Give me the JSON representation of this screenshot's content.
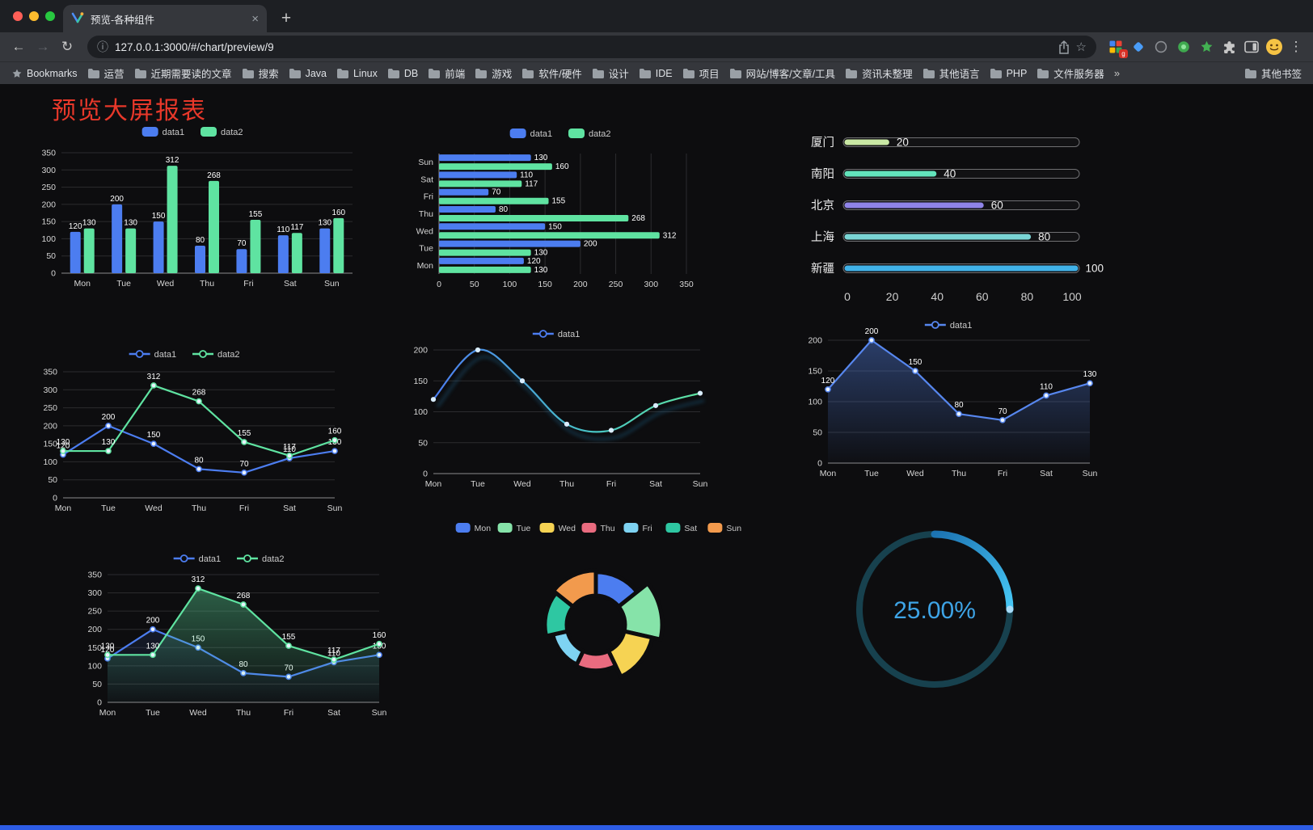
{
  "browser": {
    "tab": {
      "title": "预览-各种组件"
    },
    "new_tab_label": "+",
    "address": {
      "url": "127.0.0.1:3000/#/chart/preview/9"
    },
    "bookmarks": {
      "label": "Bookmarks",
      "items": [
        "运营",
        "近期需要读的文章",
        "搜索",
        "Java",
        "Linux",
        "DB",
        "前端",
        "游戏",
        "软件/硬件",
        "设计",
        "IDE",
        "项目",
        "网站/博客/文章/工具",
        "资讯未整理",
        "其他语言",
        "PHP",
        "文件服务器"
      ],
      "overflow": "»",
      "other": "其他书签"
    }
  },
  "page": {
    "title": "预览大屏报表",
    "title_color": "#e8382a",
    "background": "#0d0d0f"
  },
  "chart_data": [
    {
      "name": "grouped-bar-chart",
      "type": "bar",
      "categories": [
        "Mon",
        "Tue",
        "Wed",
        "Thu",
        "Fri",
        "Sat",
        "Sun"
      ],
      "series": [
        {
          "name": "data1",
          "color": "#4C7DF0",
          "values": [
            120,
            200,
            150,
            80,
            70,
            110,
            130
          ]
        },
        {
          "name": "data2",
          "color": "#5FE3A1",
          "values": [
            130,
            130,
            312,
            268,
            155,
            117,
            160
          ]
        }
      ],
      "ylim": [
        0,
        350
      ],
      "yticks": [
        0,
        50,
        100,
        150,
        200,
        250,
        300,
        350
      ],
      "grid": true,
      "legend_position": "top"
    },
    {
      "name": "horizontal-bar-chart",
      "type": "hbar",
      "categories": [
        "Mon",
        "Tue",
        "Wed",
        "Thu",
        "Fri",
        "Sat",
        "Sun"
      ],
      "series": [
        {
          "name": "data1",
          "color": "#4C7DF0",
          "values": [
            120,
            200,
            150,
            80,
            70,
            110,
            130
          ]
        },
        {
          "name": "data2",
          "color": "#5FE3A1",
          "values": [
            130,
            130,
            312,
            268,
            155,
            117,
            160
          ]
        }
      ],
      "xlim": [
        0,
        350
      ],
      "xticks": [
        0,
        50,
        100,
        150,
        200,
        250,
        300,
        350
      ],
      "grid": true,
      "legend_position": "top"
    },
    {
      "name": "capsule-progress-chart",
      "type": "progress",
      "max": 100,
      "xticks": [
        0,
        20,
        40,
        60,
        80,
        100
      ],
      "items": [
        {
          "label": "厦门",
          "value": 20,
          "color": "#C9E8A4"
        },
        {
          "label": "南阳",
          "value": 40,
          "color": "#62E3BB"
        },
        {
          "label": "北京",
          "value": 60,
          "color": "#8F84E8"
        },
        {
          "label": "上海",
          "value": 80,
          "color": "#7AD5D5"
        },
        {
          "label": "新疆",
          "value": 100,
          "color": "#41B2E8"
        }
      ]
    },
    {
      "name": "two-line-chart",
      "type": "line",
      "labels": true,
      "categories": [
        "Mon",
        "Tue",
        "Wed",
        "Thu",
        "Fri",
        "Sat",
        "Sun"
      ],
      "series": [
        {
          "name": "data1",
          "color": "#4C7DF0",
          "values": [
            120,
            200,
            150,
            80,
            70,
            110,
            130
          ]
        },
        {
          "name": "data2",
          "color": "#5FE3A1",
          "values": [
            130,
            130,
            312,
            268,
            155,
            117,
            160
          ]
        }
      ],
      "ylim": [
        0,
        350
      ],
      "yticks": [
        0,
        50,
        100,
        150,
        200,
        250,
        300,
        350
      ],
      "grid": true,
      "legend_position": "top"
    },
    {
      "name": "gradient-line-chart",
      "type": "line",
      "labels": false,
      "smooth": true,
      "shadow": true,
      "categories": [
        "Mon",
        "Tue",
        "Wed",
        "Thu",
        "Fri",
        "Sat",
        "Sun"
      ],
      "series": [
        {
          "name": "data1",
          "gradient": [
            {
              "offset": 0,
              "color": "#4C7DF0"
            },
            {
              "offset": 0.6,
              "color": "#47C4C4"
            },
            {
              "offset": 1,
              "color": "#5FE3A1"
            }
          ],
          "values": [
            120,
            200,
            150,
            80,
            70,
            110,
            130
          ]
        }
      ],
      "ylim": [
        0,
        200
      ],
      "yticks": [
        0,
        50,
        100,
        150,
        200
      ],
      "grid": true,
      "legend_position": "top"
    },
    {
      "name": "area-line-chart",
      "type": "line",
      "labels": true,
      "categories": [
        "Mon",
        "Tue",
        "Wed",
        "Thu",
        "Fri",
        "Sat",
        "Sun"
      ],
      "series": [
        {
          "name": "data1",
          "color": "#5787EF",
          "values": [
            120,
            200,
            150,
            80,
            70,
            110,
            130
          ],
          "area": 0.4
        }
      ],
      "ylim": [
        0,
        200
      ],
      "yticks": [
        0,
        50,
        100,
        150,
        200
      ],
      "grid": true,
      "legend_position": "top"
    },
    {
      "name": "two-line-area-chart",
      "type": "line",
      "labels": true,
      "categories": [
        "Mon",
        "Tue",
        "Wed",
        "Thu",
        "Fri",
        "Sat",
        "Sun"
      ],
      "series": [
        {
          "name": "data1",
          "color": "#4C7DF0",
          "values": [
            120,
            200,
            150,
            80,
            70,
            110,
            130
          ],
          "area": 0.12
        },
        {
          "name": "data2",
          "color": "#5FE3A1",
          "values": [
            130,
            130,
            312,
            268,
            155,
            117,
            160
          ],
          "area": 0.38
        }
      ],
      "ylim": [
        0,
        350
      ],
      "yticks": [
        0,
        50,
        100,
        150,
        200,
        250,
        300,
        350
      ],
      "grid": true,
      "legend_position": "top"
    },
    {
      "name": "rose-pie-chart",
      "type": "rose",
      "legend_position": "top",
      "items": [
        {
          "label": "Mon",
          "value": 120,
          "color": "#4C7DF0"
        },
        {
          "label": "Tue",
          "value": 200,
          "color": "#86E3A9"
        },
        {
          "label": "Wed",
          "value": 150,
          "color": "#F6D353"
        },
        {
          "label": "Thu",
          "value": 80,
          "color": "#E96B7F"
        },
        {
          "label": "Fri",
          "value": 70,
          "color": "#7ED3F2"
        },
        {
          "label": "Sat",
          "value": 110,
          "color": "#2EC7A2"
        },
        {
          "label": "Sun",
          "value": 130,
          "color": "#F29A4D"
        }
      ]
    },
    {
      "name": "gauge-progress-chart",
      "type": "gauge",
      "value": 25,
      "text": "25.00%",
      "track_color": "#17414E",
      "arc_colors": [
        "#1C73B2",
        "#47C8F6"
      ],
      "text_color": "#3EA4E6"
    }
  ]
}
